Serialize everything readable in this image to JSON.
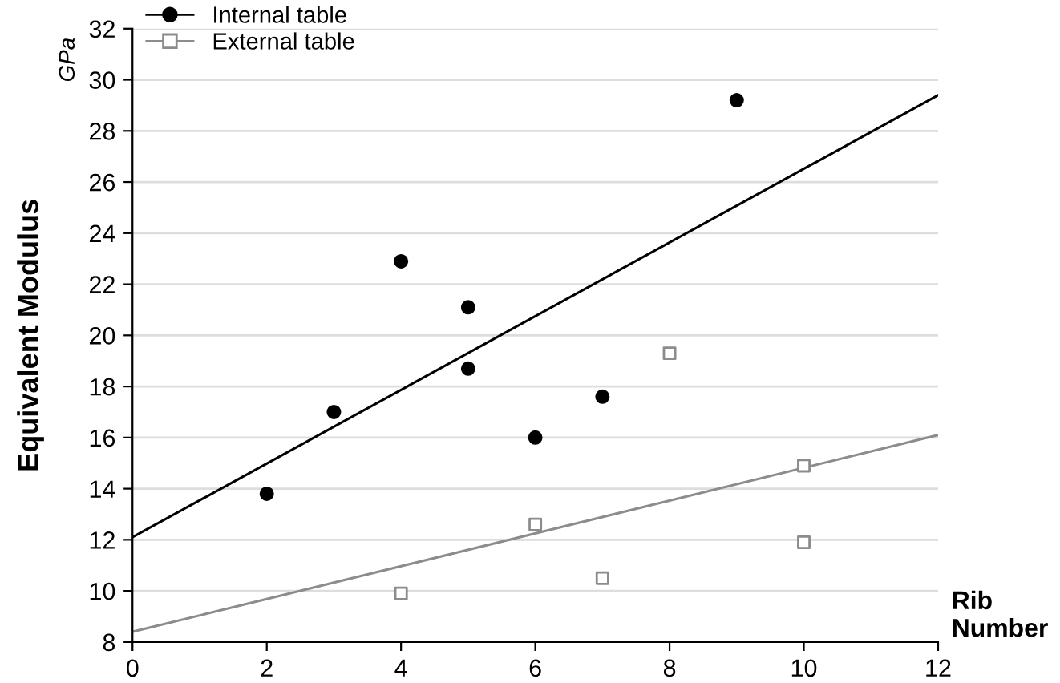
{
  "chart_data": {
    "type": "scatter",
    "xlabel": "Rib\nNumber",
    "ylabel": "Equivalent Modulus",
    "annotations": [
      "GPa"
    ],
    "xlim": [
      0,
      12
    ],
    "xticks": [
      0,
      2,
      4,
      6,
      8,
      10,
      12
    ],
    "ylim": [
      8,
      32
    ],
    "yticks": [
      8,
      10,
      12,
      14,
      16,
      18,
      20,
      22,
      24,
      26,
      28,
      30,
      32
    ],
    "grid": "y",
    "legend": "top left",
    "series": [
      {
        "name": "Internal table",
        "color": "#000000",
        "marker": "circle",
        "x": [
          2,
          3,
          4,
          5,
          5,
          6,
          7,
          9
        ],
        "values": [
          13.8,
          17.0,
          22.9,
          21.1,
          18.7,
          16.0,
          17.6,
          29.2
        ]
      },
      {
        "name": "External table",
        "color": "#8c8c8c",
        "marker": "square",
        "x": [
          4,
          6,
          7,
          8,
          10,
          10
        ],
        "values": [
          9.9,
          12.6,
          10.5,
          19.3,
          14.9,
          11.9
        ]
      },
      {
        "type": "line",
        "color": "#000000",
        "x": [
          0,
          12
        ],
        "values": [
          12.1,
          29.4
        ]
      },
      {
        "type": "line",
        "color": "#8c8c8c",
        "x": [
          0,
          12
        ],
        "values": [
          8.4,
          16.1
        ]
      }
    ]
  }
}
